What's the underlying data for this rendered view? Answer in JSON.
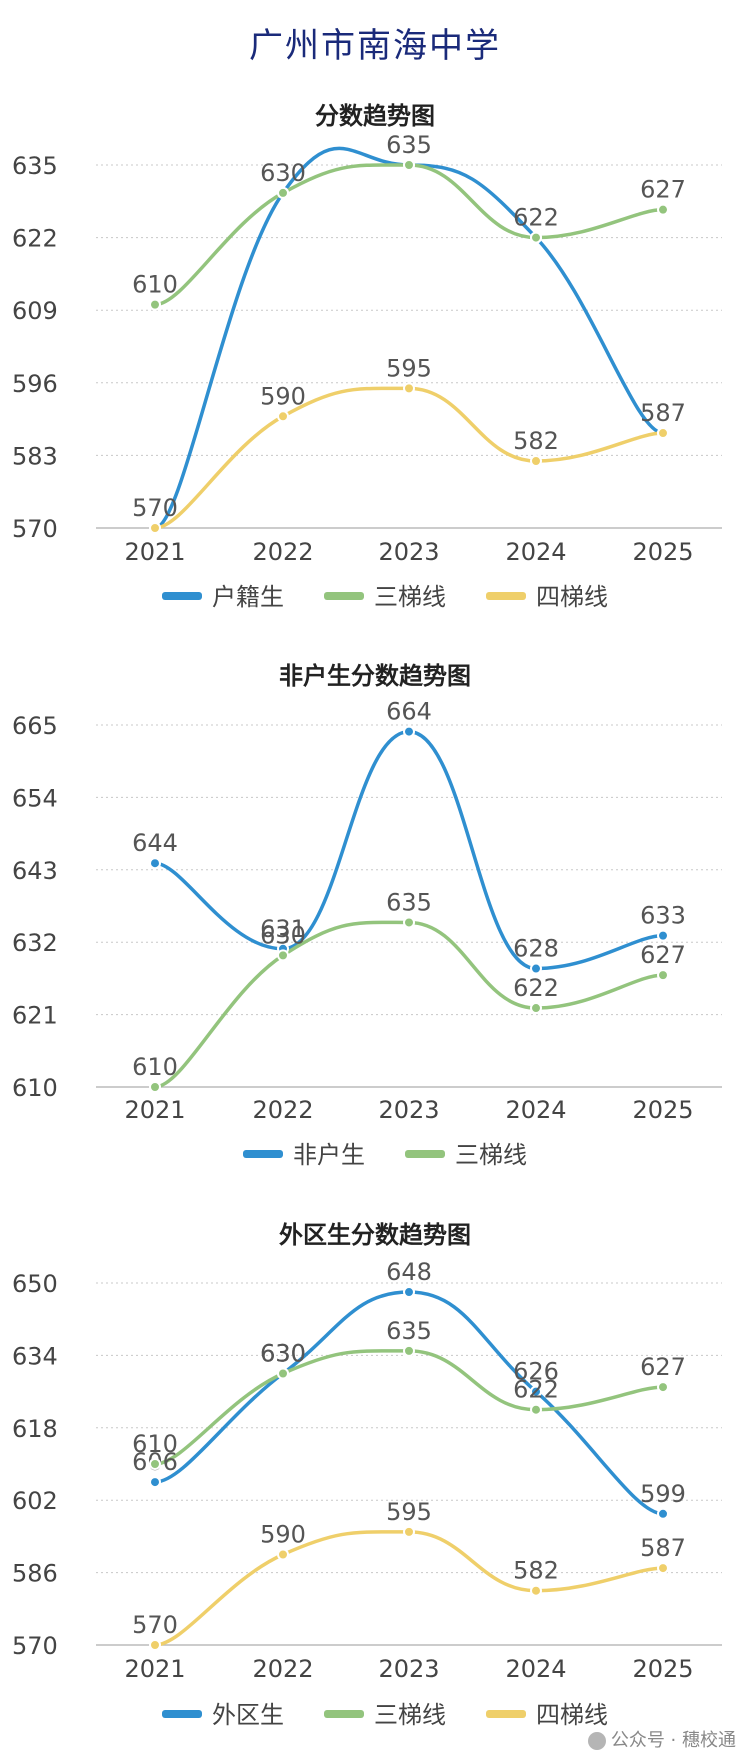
{
  "page_title": "广州市南海中学",
  "watermark": "公众号 · 穗校通",
  "colors": {
    "blue": "#2f8fd0",
    "green": "#93c47d",
    "yellow": "#efcf6a",
    "grid": "#c8c8c8",
    "axis": "#bbbbbb"
  },
  "chart_data": [
    {
      "type": "line",
      "title": "分数趋势图",
      "categories": [
        "2021",
        "2022",
        "2023",
        "2024",
        "2025"
      ],
      "ylim": [
        570,
        635
      ],
      "yticks": [
        570,
        583,
        596,
        609,
        622,
        635
      ],
      "grid": true,
      "legend_position": "bottom",
      "series": [
        {
          "name": "户籍生",
          "color": "#2f8fd0",
          "values": [
            570,
            630,
            635,
            622,
            587
          ],
          "show_labels": false
        },
        {
          "name": "三梯线",
          "color": "#93c47d",
          "values": [
            610,
            630,
            635,
            622,
            627
          ],
          "show_labels": true
        },
        {
          "name": "四梯线",
          "color": "#efcf6a",
          "values": [
            570,
            590,
            595,
            582,
            587
          ],
          "show_labels": true
        }
      ]
    },
    {
      "type": "line",
      "title": "非户生分数趋势图",
      "categories": [
        "2021",
        "2022",
        "2023",
        "2024",
        "2025"
      ],
      "ylim": [
        610,
        665
      ],
      "yticks": [
        610,
        621,
        632,
        643,
        654,
        665
      ],
      "grid": true,
      "legend_position": "bottom",
      "series": [
        {
          "name": "非户生",
          "color": "#2f8fd0",
          "values": [
            644,
            631,
            664,
            628,
            633
          ],
          "show_labels": true
        },
        {
          "name": "三梯线",
          "color": "#93c47d",
          "values": [
            610,
            630,
            635,
            622,
            627
          ],
          "show_labels": true
        }
      ]
    },
    {
      "type": "line",
      "title": "外区生分数趋势图",
      "categories": [
        "2021",
        "2022",
        "2023",
        "2024",
        "2025"
      ],
      "ylim": [
        570,
        650
      ],
      "yticks": [
        570,
        586,
        602,
        618,
        634,
        650
      ],
      "grid": true,
      "legend_position": "bottom",
      "series": [
        {
          "name": "外区生",
          "color": "#2f8fd0",
          "values": [
            606,
            630,
            648,
            626,
            599
          ],
          "show_labels": true
        },
        {
          "name": "三梯线",
          "color": "#93c47d",
          "values": [
            610,
            630,
            635,
            622,
            627
          ],
          "show_labels": true
        },
        {
          "name": "四梯线",
          "color": "#efcf6a",
          "values": [
            570,
            590,
            595,
            582,
            587
          ],
          "show_labels": true
        }
      ]
    }
  ]
}
